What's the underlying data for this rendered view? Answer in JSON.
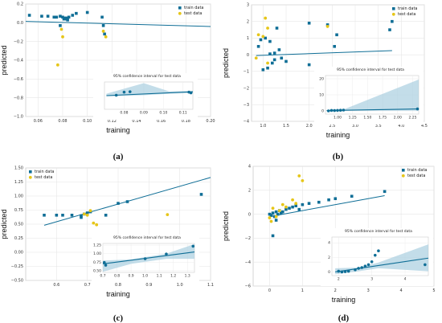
{
  "chart_data": [
    {
      "type": "scatter",
      "panel_label": "(a)",
      "xlabel": "training",
      "ylabel": "predicted",
      "xlim": [
        0.05,
        0.2
      ],
      "ylim": [
        -1.0,
        0.2
      ],
      "xticks": [
        0.06,
        0.08,
        0.1,
        0.12,
        0.14,
        0.16,
        0.18,
        0.2
      ],
      "xtick_labels": [
        "0.06",
        "0.08",
        "0.10",
        "0.12",
        "0.14",
        "0.16",
        "0.18",
        "0.20"
      ],
      "yticks": [
        -1.0,
        -0.8,
        -0.6,
        -0.4,
        -0.2,
        0.0,
        0.2
      ],
      "ytick_labels": [
        "−1.0",
        "−0.8",
        "−0.6",
        "−0.4",
        "−0.2",
        "0.0",
        "0.2"
      ],
      "grid": true,
      "legend_position": "top-right",
      "series": [
        {
          "name": "train data",
          "marker": "square",
          "color": "#0f6e96",
          "points": [
            [
              0.053,
              0.08
            ],
            [
              0.063,
              0.07
            ],
            [
              0.068,
              0.07
            ],
            [
              0.073,
              0.06
            ],
            [
              0.075,
              0.06
            ],
            [
              0.078,
              0.07
            ],
            [
              0.08,
              0.06
            ],
            [
              0.081,
              0.04
            ],
            [
              0.082,
              0.05
            ],
            [
              0.083,
              0.05
            ],
            [
              0.084,
              0.03
            ],
            [
              0.085,
              0.06
            ],
            [
              0.088,
              0.08
            ],
            [
              0.091,
              0.1
            ],
            [
              0.1,
              0.11
            ],
            [
              0.112,
              0.06
            ],
            [
              0.113,
              -0.03
            ],
            [
              0.114,
              -0.12
            ],
            [
              0.078,
              -0.03
            ],
            [
              0.083,
              0.04
            ]
          ]
        },
        {
          "name": "test data",
          "marker": "circle",
          "color": "#e6c619",
          "points": [
            [
              0.076,
              -0.45
            ],
            [
              0.08,
              -0.15
            ],
            [
              0.079,
              -0.07
            ],
            [
              0.113,
              -0.09
            ],
            [
              0.115,
              -0.15
            ]
          ]
        }
      ],
      "fit_line": [
        [
          0.05,
          0.015
        ],
        [
          0.2,
          -0.04
        ]
      ],
      "inset": {
        "title": "95% confidence interval for test data",
        "xlim": [
          0.07,
          0.115
        ],
        "ylim": [
          -0.5,
          0.2
        ],
        "xticks": [
          0.08,
          0.09,
          0.1,
          0.11
        ],
        "xtick_labels": [
          "0.08",
          "0.09",
          "0.10",
          "0.11"
        ],
        "yticks": [],
        "ytick_labels": [],
        "points": [
          [
            0.076,
            -0.14
          ],
          [
            0.08,
            -0.06
          ],
          [
            0.083,
            -0.05
          ],
          [
            0.113,
            -0.06
          ],
          [
            0.114,
            -0.08
          ]
        ],
        "fit_line": [
          [
            0.071,
            -0.15
          ],
          [
            0.115,
            -0.05
          ]
        ],
        "band_upper": [
          [
            0.071,
            -0.1
          ],
          [
            0.09,
            0.17
          ],
          [
            0.103,
            -0.04
          ],
          [
            0.115,
            -0.03
          ]
        ],
        "band_lower": [
          [
            0.071,
            -0.17
          ],
          [
            0.09,
            -0.14
          ],
          [
            0.103,
            -0.1
          ],
          [
            0.115,
            -0.08
          ]
        ]
      }
    },
    {
      "type": "scatter",
      "panel_label": "(b)",
      "xlabel": "training",
      "ylabel": "predicted",
      "xlim": [
        0.75,
        4.5
      ],
      "ylim": [
        -4,
        3
      ],
      "xticks": [
        1.0,
        1.5,
        2.0,
        2.5,
        3.0,
        3.5,
        4.0,
        4.5
      ],
      "xtick_labels": [
        "1.0",
        "1.5",
        "2.0",
        "2.5",
        "3.0",
        "3.5",
        "4.0",
        "4.5"
      ],
      "yticks": [
        -4,
        -3,
        -2,
        -1,
        0,
        1,
        2,
        3
      ],
      "ytick_labels": [
        "−4",
        "−3",
        "−2",
        "−1",
        "0",
        "1",
        "2",
        "3"
      ],
      "grid": true,
      "legend_position": "top-right",
      "series": [
        {
          "name": "train data",
          "marker": "square",
          "color": "#0f6e96",
          "points": [
            [
              0.9,
              0.5
            ],
            [
              0.95,
              0.9
            ],
            [
              1.0,
              -0.9
            ],
            [
              1.05,
              1.0
            ],
            [
              1.1,
              -0.8
            ],
            [
              1.15,
              0.8
            ],
            [
              1.2,
              -0.5
            ],
            [
              1.25,
              -0.3
            ],
            [
              1.3,
              1.6
            ],
            [
              1.35,
              0.3
            ],
            [
              1.4,
              -0.2
            ],
            [
              1.5,
              -0.4
            ],
            [
              1.25,
              0.1
            ],
            [
              1.15,
              0.05
            ],
            [
              2.0,
              1.9
            ],
            [
              2.4,
              1.8
            ],
            [
              2.6,
              1.2
            ],
            [
              2.55,
              0.5
            ],
            [
              3.75,
              1.5
            ],
            [
              3.8,
              2.0
            ],
            [
              2.0,
              -0.6
            ]
          ]
        },
        {
          "name": "test data",
          "marker": "circle",
          "color": "#e6c619",
          "points": [
            [
              0.85,
              -0.2
            ],
            [
              0.9,
              1.2
            ],
            [
              1.0,
              1.1
            ],
            [
              1.05,
              2.2
            ],
            [
              1.1,
              1.6
            ],
            [
              1.1,
              -0.5
            ],
            [
              2.4,
              1.7
            ]
          ]
        }
      ],
      "fit_line": [
        [
          0.85,
          -0.05
        ],
        [
          3.8,
          0.25
        ]
      ],
      "inset": {
        "title": "95% confidence interval for test data",
        "xlim": [
          0.8,
          2.35
        ],
        "ylim": [
          -2,
          22
        ],
        "xticks": [
          1.0,
          1.25,
          1.5,
          1.75,
          2.0,
          2.25
        ],
        "xtick_labels": [
          "1.00",
          "1.25",
          "1.50",
          "1.75",
          "2.00",
          "2.25"
        ],
        "yticks": [
          0,
          10,
          20
        ],
        "ytick_labels": [
          "0",
          "10",
          "20"
        ],
        "points": [
          [
            0.85,
            0.0
          ],
          [
            0.9,
            0.3
          ],
          [
            0.95,
            0.2
          ],
          [
            1.0,
            0.3
          ],
          [
            1.05,
            0.4
          ],
          [
            1.1,
            0.5
          ],
          [
            2.33,
            1.2
          ]
        ],
        "fit_line": [
          [
            0.82,
            0.2
          ],
          [
            2.35,
            1.2
          ]
        ],
        "band_upper": [
          [
            0.82,
            0.5
          ],
          [
            1.1,
            0.9
          ],
          [
            2.35,
            19.5
          ]
        ],
        "band_lower": [
          [
            0.82,
            -0.2
          ],
          [
            1.1,
            0.1
          ],
          [
            2.35,
            0.1
          ]
        ]
      }
    },
    {
      "type": "scatter",
      "panel_label": "(c)",
      "xlabel": "training",
      "ylabel": "predicted",
      "xlim": [
        0.5,
        1.1
      ],
      "ylim": [
        -0.5,
        1.5
      ],
      "xticks": [
        0.6,
        0.7,
        0.8,
        0.9,
        1.0,
        1.1
      ],
      "xtick_labels": [
        "0.6",
        "0.7",
        "0.8",
        "0.9",
        "1.0",
        "1.1"
      ],
      "yticks": [
        -0.5,
        -0.25,
        0.0,
        0.25,
        0.5,
        0.75,
        1.0,
        1.25,
        1.5
      ],
      "ytick_labels": [
        "−0.50",
        "−0.25",
        "0.00",
        "0.25",
        "0.50",
        "0.75",
        "1.00",
        "1.25",
        "1.50"
      ],
      "grid": true,
      "legend_position": "top-left",
      "series": [
        {
          "name": "train data",
          "marker": "square",
          "color": "#0f6e96",
          "points": [
            [
              0.56,
              0.66
            ],
            [
              0.6,
              0.66
            ],
            [
              0.62,
              0.66
            ],
            [
              0.65,
              0.66
            ],
            [
              0.68,
              0.65
            ],
            [
              0.68,
              0.62
            ],
            [
              0.69,
              0.68
            ],
            [
              0.7,
              0.7
            ],
            [
              0.71,
              0.72
            ],
            [
              0.76,
              0.66
            ],
            [
              0.8,
              0.87
            ],
            [
              0.83,
              0.9
            ],
            [
              1.07,
              1.03
            ]
          ]
        },
        {
          "name": "test data",
          "marker": "circle",
          "color": "#e6c619",
          "points": [
            [
              0.69,
              0.68
            ],
            [
              0.7,
              0.66
            ],
            [
              0.71,
              0.74
            ],
            [
              0.72,
              0.52
            ],
            [
              0.73,
              0.49
            ],
            [
              0.96,
              0.67
            ]
          ]
        }
      ],
      "fit_line": [
        [
          0.56,
          0.48
        ],
        [
          1.1,
          1.33
        ]
      ],
      "inset": {
        "title": "95% confidence interval for test data",
        "xlim": [
          0.7,
          1.35
        ],
        "ylim": [
          0.45,
          1.3
        ],
        "xticks": [
          0.7,
          0.8,
          0.9,
          1.0,
          1.1,
          1.2,
          1.3
        ],
        "xtick_labels": [
          "0.7",
          "0.8",
          "0.9",
          "1.0",
          "1.1",
          "1.2",
          "1.3"
        ],
        "yticks": [
          0.5,
          0.75,
          1.0,
          1.25
        ],
        "ytick_labels": [
          "0.50",
          "0.75",
          "1.00",
          "1.25"
        ],
        "points": [
          [
            0.71,
            0.74
          ],
          [
            0.72,
            0.66
          ],
          [
            1.0,
            0.85
          ],
          [
            1.15,
            0.99
          ],
          [
            1.34,
            1.22
          ]
        ],
        "fit_line": [
          [
            0.7,
            0.7
          ],
          [
            1.35,
            1.05
          ]
        ],
        "band_upper": [
          [
            0.7,
            0.8
          ],
          [
            0.9,
            0.83
          ],
          [
            1.15,
            1.0
          ],
          [
            1.35,
            1.28
          ]
        ],
        "band_lower": [
          [
            0.7,
            0.47
          ],
          [
            0.9,
            0.7
          ],
          [
            1.15,
            0.85
          ],
          [
            1.35,
            0.85
          ]
        ]
      }
    },
    {
      "type": "scatter",
      "panel_label": "(d)",
      "xlabel": "training",
      "ylabel": "predicted",
      "xlim": [
        -0.5,
        5
      ],
      "ylim": [
        -6,
        4
      ],
      "xticks": [
        0,
        1,
        2,
        3,
        4,
        5
      ],
      "xtick_labels": [
        "0",
        "1",
        "2",
        "3",
        "4",
        "5"
      ],
      "yticks": [
        -6,
        -4,
        -2,
        0,
        2,
        4
      ],
      "ytick_labels": [
        "−6",
        "−4",
        "−2",
        "0",
        "2",
        "4"
      ],
      "grid": true,
      "legend_position": "top-right",
      "series": [
        {
          "name": "train data",
          "marker": "square",
          "color": "#0f6e96",
          "points": [
            [
              0.0,
              0.0
            ],
            [
              0.05,
              -0.1
            ],
            [
              0.1,
              0.1
            ],
            [
              0.15,
              -0.2
            ],
            [
              0.2,
              0.2
            ],
            [
              0.25,
              0.0
            ],
            [
              0.3,
              0.3
            ],
            [
              0.35,
              0.1
            ],
            [
              0.4,
              0.2
            ],
            [
              0.5,
              0.4
            ],
            [
              0.6,
              0.5
            ],
            [
              0.7,
              0.6
            ],
            [
              0.8,
              0.7
            ],
            [
              0.9,
              0.4
            ],
            [
              1.0,
              0.8
            ],
            [
              1.2,
              0.9
            ],
            [
              1.5,
              1.0
            ],
            [
              1.8,
              1.2
            ],
            [
              2.0,
              1.3
            ],
            [
              2.5,
              1.5
            ],
            [
              3.5,
              1.9
            ],
            [
              0.1,
              -1.8
            ],
            [
              0.2,
              -0.5
            ]
          ]
        },
        {
          "name": "test data",
          "marker": "circle",
          "color": "#e6c619",
          "points": [
            [
              0.0,
              -0.3
            ],
            [
              0.1,
              0.5
            ],
            [
              0.2,
              -0.2
            ],
            [
              0.3,
              0.3
            ],
            [
              0.4,
              0.8
            ],
            [
              0.5,
              0.6
            ],
            [
              0.7,
              1.2
            ],
            [
              0.8,
              0.9
            ],
            [
              0.9,
              3.2
            ],
            [
              1.0,
              2.8
            ],
            [
              0.05,
              -0.6
            ]
          ]
        }
      ],
      "fit_line": [
        [
          0.0,
          -0.2
        ],
        [
          3.5,
          1.55
        ]
      ],
      "inset": {
        "title": "95% confidence interval for test data",
        "xlim": [
          1.8,
          4.7
        ],
        "ylim": [
          -0.5,
          4.8
        ],
        "xticks": [
          2,
          3,
          4
        ],
        "xtick_labels": [
          "2",
          "3",
          "4"
        ],
        "yticks": [
          0,
          2,
          4
        ],
        "ytick_labels": [
          "0",
          "2",
          "4"
        ],
        "points": [
          [
            2.0,
            0.1
          ],
          [
            2.1,
            0.0
          ],
          [
            2.2,
            0.05
          ],
          [
            2.3,
            0.1
          ],
          [
            2.5,
            0.3
          ],
          [
            2.6,
            0.5
          ],
          [
            2.7,
            0.6
          ],
          [
            2.8,
            0.8
          ],
          [
            2.9,
            1.0
          ],
          [
            3.0,
            1.4
          ],
          [
            3.1,
            2.3
          ],
          [
            3.2,
            2.9
          ],
          [
            4.6,
            1.0
          ]
        ],
        "fit_line": [
          [
            1.9,
            0.0
          ],
          [
            4.7,
            1.9
          ]
        ],
        "band_upper": [
          [
            1.9,
            0.5
          ],
          [
            2.6,
            0.6
          ],
          [
            3.2,
            1.3
          ],
          [
            4.7,
            3.8
          ]
        ],
        "band_lower": [
          [
            1.9,
            -0.3
          ],
          [
            2.6,
            0.1
          ],
          [
            3.2,
            0.5
          ],
          [
            4.7,
            0.1
          ]
        ]
      }
    }
  ]
}
